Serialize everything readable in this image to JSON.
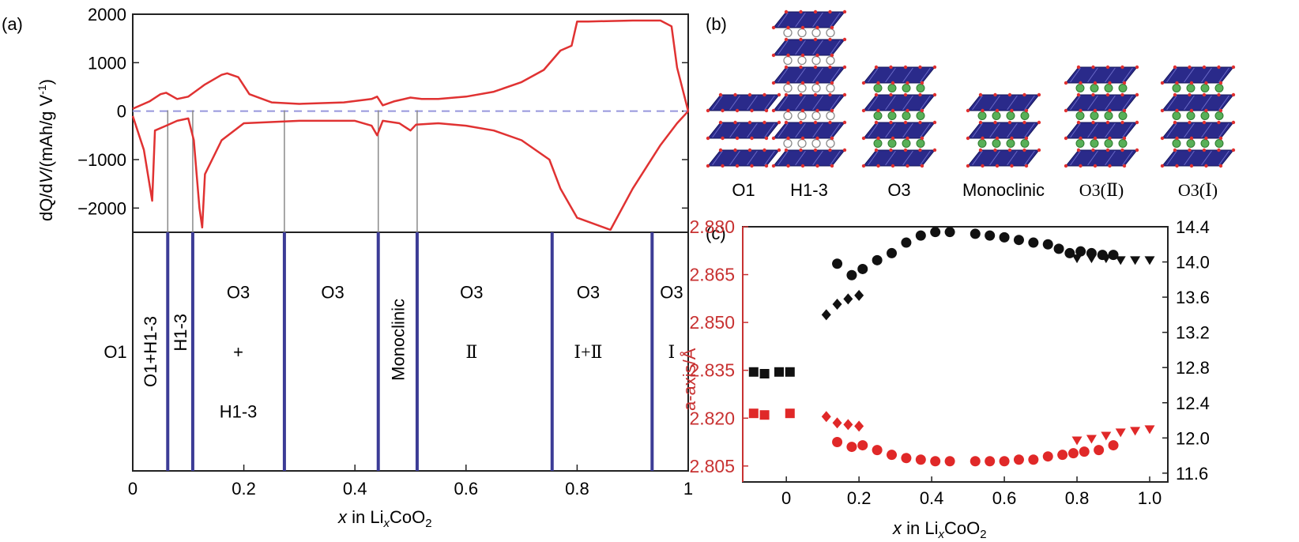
{
  "panel_labels": {
    "a": "(a)",
    "b": "(b)",
    "c": "(c)"
  },
  "colors": {
    "curve": "#e03232",
    "phase_line": "#3c3c96",
    "zero_line": "#9696dc",
    "axis_red": "#c83232",
    "marker_black": "#111111",
    "marker_red": "#e02828",
    "octahedra": "#2a2a8a",
    "oxygen": "#e03030",
    "lithium": "#58b058",
    "grey_line": "#8a8a8a"
  },
  "chart_data": [
    {
      "panel": "a",
      "type": "line",
      "xlabel_parts": [
        "x",
        " in Li",
        "x",
        "CoO",
        "2"
      ],
      "ylabel_parts": [
        "dQ/d",
        "V",
        "/(mAh/g V",
        "-1",
        ")"
      ],
      "x_ticks": [
        "0",
        "0.2",
        "0.4",
        "0.6",
        "0.8",
        "1"
      ],
      "x_tick_values": [
        0,
        0.2,
        0.4,
        0.6,
        0.8,
        1
      ],
      "y_ticks": [
        "2000",
        "1000",
        "0",
        "−1000",
        "−2000"
      ],
      "y_tick_values": [
        2000,
        1000,
        0,
        -1000,
        -2000
      ],
      "xlim": [
        0,
        1
      ],
      "ylim": [
        -2500,
        2000
      ],
      "zero_line": true,
      "series": [
        {
          "x": [
            0,
            0.03,
            0.05,
            0.06,
            0.08,
            0.1,
            0.13,
            0.16,
            0.17,
            0.19,
            0.21,
            0.25,
            0.3,
            0.38,
            0.43,
            0.44,
            0.45,
            0.47,
            0.5,
            0.52,
            0.55,
            0.6,
            0.65,
            0.7,
            0.74,
            0.77,
            0.79,
            0.8,
            0.82,
            0.9,
            0.95,
            0.97,
            0.98,
            1
          ],
          "y": [
            50,
            200,
            350,
            380,
            250,
            300,
            550,
            750,
            780,
            700,
            350,
            180,
            150,
            180,
            250,
            300,
            120,
            200,
            280,
            250,
            250,
            300,
            400,
            600,
            850,
            1250,
            1350,
            1850,
            1850,
            1870,
            1870,
            1750,
            900,
            0
          ]
        },
        {
          "x": [
            0,
            0.02,
            0.035,
            0.04,
            0.06,
            0.07,
            0.08,
            0.1,
            0.11,
            0.12,
            0.125,
            0.13,
            0.16,
            0.2,
            0.3,
            0.4,
            0.43,
            0.44,
            0.45,
            0.48,
            0.5,
            0.51,
            0.55,
            0.6,
            0.65,
            0.7,
            0.75,
            0.77,
            0.8,
            0.86,
            0.9,
            0.95,
            0.98,
            1
          ],
          "y": [
            -100,
            -800,
            -1850,
            -400,
            -300,
            -250,
            -200,
            -150,
            -600,
            -2000,
            -2400,
            -1300,
            -600,
            -250,
            -200,
            -200,
            -300,
            -500,
            -200,
            -250,
            -400,
            -280,
            -250,
            -300,
            -400,
            -600,
            -1000,
            -1600,
            -2200,
            -2450,
            -1600,
            -700,
            -250,
            0
          ]
        }
      ],
      "guide_lines_x": [
        0.063,
        0.108,
        0.273,
        0.442,
        0.512
      ],
      "phase_boundaries_x": [
        0.063,
        0.108,
        0.273,
        0.442,
        0.512,
        0.755,
        0.935
      ],
      "phase_labels": [
        {
          "text": "O1",
          "x": 0.0,
          "row": 0.5,
          "rotate": false,
          "serif": false
        },
        {
          "text": "O1+H1-3",
          "x": 0.031,
          "row": 0.5,
          "rotate": true,
          "serif": false
        },
        {
          "text": "H1-3",
          "x": 0.085,
          "row": 0.42,
          "rotate": true,
          "serif": false
        },
        {
          "text": "O3",
          "x": 0.19,
          "row": 0.25,
          "rotate": false,
          "serif": false
        },
        {
          "text": "+",
          "x": 0.19,
          "row": 0.5,
          "rotate": false,
          "serif": false
        },
        {
          "text": "H1-3",
          "x": 0.19,
          "row": 0.75,
          "rotate": false,
          "serif": false
        },
        {
          "text": "O3",
          "x": 0.36,
          "row": 0.25,
          "rotate": false,
          "serif": false
        },
        {
          "text": "Monoclinic",
          "x": 0.477,
          "row": 0.45,
          "rotate": true,
          "serif": false
        },
        {
          "text": "O3",
          "x": 0.61,
          "row": 0.25,
          "rotate": false,
          "serif": false
        },
        {
          "text": "Ⅱ",
          "x": 0.61,
          "row": 0.5,
          "rotate": false,
          "serif": true
        },
        {
          "text": "O3",
          "x": 0.82,
          "row": 0.25,
          "rotate": false,
          "serif": false
        },
        {
          "text": "Ⅰ+Ⅱ",
          "x": 0.82,
          "row": 0.5,
          "rotate": false,
          "serif": true
        },
        {
          "text": "O3",
          "x": 0.97,
          "row": 0.25,
          "rotate": false,
          "serif": false
        },
        {
          "text": "Ⅰ",
          "x": 0.97,
          "row": 0.5,
          "rotate": false,
          "serif": true
        }
      ]
    },
    {
      "panel": "c",
      "type": "scatter",
      "xlabel_parts": [
        "x",
        " in Li",
        "x",
        "CoO",
        "2"
      ],
      "ylabel_left": "a-axis/Å",
      "x_ticks": [
        "0",
        "0.2",
        "0.4",
        "0.6",
        "0.8",
        "1.0"
      ],
      "x_tick_values": [
        0,
        0.2,
        0.4,
        0.6,
        0.8,
        1.0
      ],
      "xlim": [
        -0.12,
        1.05
      ],
      "y_left_ticks": [
        "2.880",
        "2.865",
        "2.850",
        "2.835",
        "2.820",
        "2.805"
      ],
      "y_left_tick_values": [
        2.88,
        2.865,
        2.85,
        2.835,
        2.82,
        2.805
      ],
      "y_left_lim": [
        2.8,
        2.88
      ],
      "y_right_ticks": [
        "14.4",
        "14.0",
        "13.6",
        "13.2",
        "12.8",
        "12.4",
        "12.0",
        "11.6"
      ],
      "y_right_tick_values": [
        14.4,
        14.0,
        13.6,
        13.2,
        12.8,
        12.4,
        12.0,
        11.6
      ],
      "y_right_lim": [
        11.5,
        14.4
      ],
      "series": [
        {
          "axis": "right",
          "color": "black",
          "marker": "square",
          "x": [
            -0.09,
            -0.06,
            -0.02,
            0.01
          ],
          "y": [
            12.75,
            12.73,
            12.75,
            12.75
          ]
        },
        {
          "axis": "right",
          "color": "black",
          "marker": "diamond",
          "x": [
            0.11,
            0.14,
            0.17,
            0.2
          ],
          "y": [
            13.4,
            13.52,
            13.58,
            13.62
          ]
        },
        {
          "axis": "right",
          "color": "black",
          "marker": "circle",
          "x": [
            0.14,
            0.18,
            0.21,
            0.25,
            0.29,
            0.33,
            0.37,
            0.41,
            0.45,
            0.52,
            0.56,
            0.6,
            0.64,
            0.68,
            0.72,
            0.75,
            0.78,
            0.81,
            0.84,
            0.87,
            0.9
          ],
          "y": [
            13.98,
            13.85,
            13.92,
            14.02,
            14.1,
            14.22,
            14.3,
            14.34,
            14.34,
            14.32,
            14.3,
            14.28,
            14.25,
            14.22,
            14.2,
            14.15,
            14.1,
            14.12,
            14.1,
            14.08,
            14.08
          ]
        },
        {
          "axis": "right",
          "color": "black",
          "marker": "triangle",
          "x": [
            0.8,
            0.84,
            0.88,
            0.92,
            0.96,
            1.0
          ],
          "y": [
            14.04,
            14.04,
            14.04,
            14.02,
            14.02,
            14.02
          ]
        },
        {
          "axis": "left",
          "color": "red",
          "marker": "square",
          "x": [
            -0.09,
            -0.06,
            0.01
          ],
          "y": [
            2.8215,
            2.821,
            2.8215
          ]
        },
        {
          "axis": "left",
          "color": "red",
          "marker": "diamond",
          "x": [
            0.11,
            0.14,
            0.17,
            0.2
          ],
          "y": [
            2.8205,
            2.8185,
            2.818,
            2.8175
          ]
        },
        {
          "axis": "left",
          "color": "red",
          "marker": "circle",
          "x": [
            0.14,
            0.18,
            0.21,
            0.25,
            0.29,
            0.33,
            0.37,
            0.41,
            0.45,
            0.52,
            0.56,
            0.6,
            0.64,
            0.68,
            0.72,
            0.76,
            0.79,
            0.82,
            0.86,
            0.9
          ],
          "y": [
            2.8125,
            2.811,
            2.8115,
            2.81,
            2.8085,
            2.8075,
            2.807,
            2.8065,
            2.8065,
            2.8065,
            2.8065,
            2.8065,
            2.807,
            2.807,
            2.808,
            2.8085,
            2.809,
            2.8095,
            2.81,
            2.8115
          ]
        },
        {
          "axis": "left",
          "color": "red",
          "marker": "triangle",
          "x": [
            0.8,
            0.84,
            0.88,
            0.92,
            0.96,
            1.0
          ],
          "y": [
            2.813,
            2.8135,
            2.8145,
            2.8155,
            2.816,
            2.8165
          ]
        }
      ]
    }
  ],
  "structures": {
    "labels": [
      "O1",
      "H1-3",
      "O3",
      "Monoclinic",
      "O3(Ⅱ)",
      "O3(Ⅰ)"
    ],
    "stacks": [
      {
        "layers": 3,
        "li": "none"
      },
      {
        "layers": 6,
        "li": "hollow"
      },
      {
        "layers": 4,
        "li": "green"
      },
      {
        "layers": 3,
        "li": "green"
      },
      {
        "layers": 4,
        "li": "green"
      },
      {
        "layers": 4,
        "li": "green"
      }
    ]
  }
}
